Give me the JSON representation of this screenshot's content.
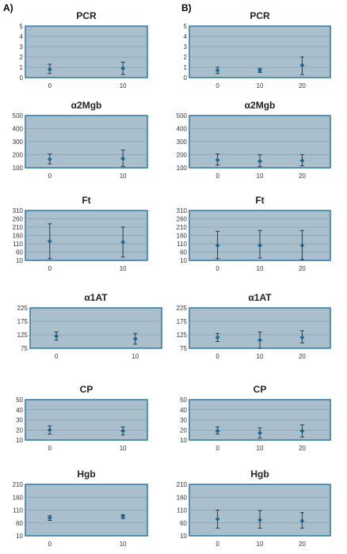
{
  "panels": [
    {
      "label": "A)"
    },
    {
      "label": "B)"
    }
  ],
  "chart_data": [
    {
      "panel": "A)",
      "type": "scatter",
      "title": "PCR",
      "yticks": [
        0,
        1,
        2,
        3,
        4,
        5
      ],
      "ylim": [
        0,
        5
      ],
      "x_ticks": [
        "0",
        "10"
      ],
      "points": [
        {
          "x": "0",
          "y": 0.8,
          "err_low": 0.4,
          "err_high": 1.3
        },
        {
          "x": "10",
          "y": 0.9,
          "err_low": 0.3,
          "err_high": 1.5
        }
      ]
    },
    {
      "panel": "B)",
      "type": "scatter",
      "title": "PCR",
      "yticks": [
        0,
        1,
        2,
        3,
        4,
        5
      ],
      "ylim": [
        0,
        5
      ],
      "x_ticks": [
        "0",
        "10",
        "20"
      ],
      "points": [
        {
          "x": "0",
          "y": 0.7,
          "err_low": 0.4,
          "err_high": 1.0
        },
        {
          "x": "10",
          "y": 0.7,
          "err_low": 0.5,
          "err_high": 0.9
        },
        {
          "x": "20",
          "y": 1.2,
          "err_low": 0.3,
          "err_high": 2.0
        }
      ]
    },
    {
      "panel": "A)",
      "type": "scatter",
      "title": "α2Mgb",
      "yticks": [
        100,
        200,
        300,
        400,
        500
      ],
      "ylim": [
        100,
        500
      ],
      "x_ticks": [
        "0",
        "10"
      ],
      "points": [
        {
          "x": "0",
          "y": 165,
          "err_low": 130,
          "err_high": 205
        },
        {
          "x": "10",
          "y": 170,
          "err_low": 110,
          "err_high": 235
        }
      ]
    },
    {
      "panel": "B)",
      "type": "scatter",
      "title": "α2Mgb",
      "yticks": [
        100,
        200,
        300,
        400,
        500
      ],
      "ylim": [
        100,
        500
      ],
      "x_ticks": [
        "0",
        "10",
        "20"
      ],
      "points": [
        {
          "x": "0",
          "y": 160,
          "err_low": 120,
          "err_high": 205
        },
        {
          "x": "10",
          "y": 150,
          "err_low": 110,
          "err_high": 200
        },
        {
          "x": "20",
          "y": 155,
          "err_low": 115,
          "err_high": 200
        }
      ]
    },
    {
      "panel": "A)",
      "type": "scatter",
      "title": "Ft",
      "yticks": [
        10,
        60,
        110,
        160,
        210,
        260,
        310
      ],
      "ylim": [
        10,
        310
      ],
      "x_ticks": [
        "0",
        "10"
      ],
      "points": [
        {
          "x": "0",
          "y": 125,
          "err_low": 20,
          "err_high": 230
        },
        {
          "x": "10",
          "y": 120,
          "err_low": 30,
          "err_high": 210
        }
      ]
    },
    {
      "panel": "B)",
      "type": "scatter",
      "title": "Ft",
      "yticks": [
        10,
        60,
        110,
        160,
        210,
        260,
        310
      ],
      "ylim": [
        10,
        310
      ],
      "x_ticks": [
        "0",
        "10",
        "20"
      ],
      "points": [
        {
          "x": "0",
          "y": 100,
          "err_low": 20,
          "err_high": 185
        },
        {
          "x": "10",
          "y": 100,
          "err_low": 25,
          "err_high": 190
        },
        {
          "x": "20",
          "y": 100,
          "err_low": 15,
          "err_high": 190
        }
      ]
    },
    {
      "panel": "A)",
      "type": "scatter",
      "title": "α1AT",
      "yticks": [
        75,
        125,
        175,
        225
      ],
      "ylim": [
        75,
        225
      ],
      "x_ticks": [
        "0",
        "10"
      ],
      "points": [
        {
          "x": "0",
          "y": 120,
          "err_low": 105,
          "err_high": 135
        },
        {
          "x": "10",
          "y": 110,
          "err_low": 90,
          "err_high": 130
        }
      ]
    },
    {
      "panel": "B)",
      "type": "scatter",
      "title": "α1AT",
      "yticks": [
        75,
        125,
        175,
        225
      ],
      "ylim": [
        75,
        225
      ],
      "x_ticks": [
        "0",
        "10",
        "20"
      ],
      "points": [
        {
          "x": "0",
          "y": 115,
          "err_low": 100,
          "err_high": 130
        },
        {
          "x": "10",
          "y": 105,
          "err_low": 75,
          "err_high": 135
        },
        {
          "x": "20",
          "y": 115,
          "err_low": 95,
          "err_high": 140
        }
      ]
    },
    {
      "panel": "A)",
      "type": "scatter",
      "title": "CP",
      "yticks": [
        10,
        20,
        30,
        40,
        50
      ],
      "ylim": [
        10,
        50
      ],
      "x_ticks": [
        "0",
        "10"
      ],
      "points": [
        {
          "x": "0",
          "y": 20,
          "err_low": 16,
          "err_high": 24
        },
        {
          "x": "10",
          "y": 19,
          "err_low": 15,
          "err_high": 23
        }
      ]
    },
    {
      "panel": "B)",
      "type": "scatter",
      "title": "CP",
      "yticks": [
        10,
        20,
        30,
        40,
        50
      ],
      "ylim": [
        10,
        50
      ],
      "x_ticks": [
        "0",
        "10",
        "20"
      ],
      "points": [
        {
          "x": "0",
          "y": 19,
          "err_low": 16,
          "err_high": 23
        },
        {
          "x": "10",
          "y": 17,
          "err_low": 12,
          "err_high": 22
        },
        {
          "x": "20",
          "y": 19,
          "err_low": 13,
          "err_high": 25
        }
      ]
    },
    {
      "panel": "A)",
      "type": "scatter",
      "title": "Hgb",
      "yticks": [
        10,
        60,
        110,
        160,
        210
      ],
      "ylim": [
        10,
        210
      ],
      "x_ticks": [
        "0",
        "10"
      ],
      "points": [
        {
          "x": "0",
          "y": 80,
          "err_low": 70,
          "err_high": 88
        },
        {
          "x": "10",
          "y": 85,
          "err_low": 77,
          "err_high": 92
        }
      ]
    },
    {
      "panel": "B)",
      "type": "scatter",
      "title": "Hgb",
      "yticks": [
        10,
        60,
        110,
        160,
        210
      ],
      "ylim": [
        10,
        210
      ],
      "x_ticks": [
        "0",
        "10",
        "20"
      ],
      "points": [
        {
          "x": "0",
          "y": 75,
          "err_low": 40,
          "err_high": 110
        },
        {
          "x": "10",
          "y": 72,
          "err_low": 40,
          "err_high": 108
        },
        {
          "x": "20",
          "y": 68,
          "err_low": 40,
          "err_high": 100
        }
      ]
    }
  ]
}
